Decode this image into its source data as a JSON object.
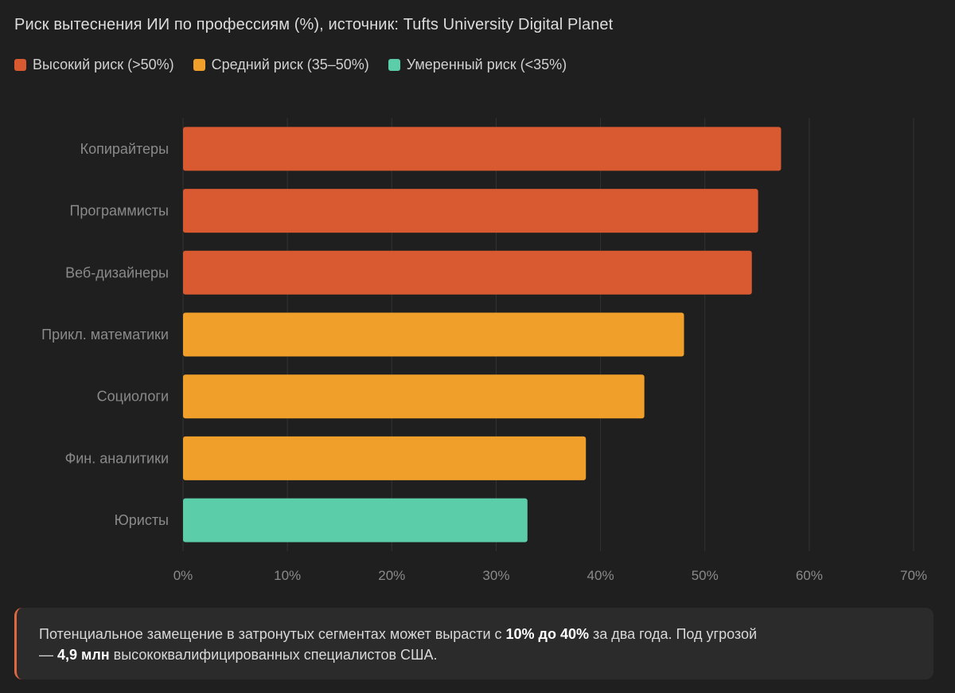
{
  "colors": {
    "background": "#1f1f1f",
    "high": "#d95a30",
    "medium": "#ef9f2a",
    "moderate": "#5ccda9",
    "grid": "#333333",
    "tick_text": "#8a8a8a",
    "note_accent": "#e2673f"
  },
  "title": "Риск вытеснения ИИ по профессиям (%), источник: Tufts University Digital Planet",
  "legend": [
    {
      "label": "Высокий риск (>50%)",
      "color": "#d95a30"
    },
    {
      "label": "Средний риск (35–50%)",
      "color": "#ef9f2a"
    },
    {
      "label": "Умеренный риск (<35%)",
      "color": "#5ccda9"
    }
  ],
  "chart_data": {
    "type": "bar",
    "orientation": "horizontal",
    "title": "Риск вытеснения ИИ по профессиям (%), источник: Tufts University Digital Planet",
    "categories": [
      "Копирайтеры",
      "Программисты",
      "Веб-дизайнеры",
      "Прикл. математики",
      "Социологи",
      "Фин. аналитики",
      "Юристы"
    ],
    "values": [
      57.3,
      55.1,
      54.5,
      48.0,
      44.2,
      38.6,
      33.0
    ],
    "risk_levels": [
      "high",
      "high",
      "high",
      "medium",
      "medium",
      "medium",
      "moderate"
    ],
    "xlim": [
      0,
      70
    ],
    "xticks": [
      0,
      10,
      20,
      30,
      40,
      50,
      60,
      70
    ],
    "xtick_labels": [
      "0%",
      "10%",
      "20%",
      "30%",
      "40%",
      "50%",
      "60%",
      "70%"
    ],
    "xlabel": "",
    "ylabel": "",
    "grid": "vertical",
    "legend_position": "top-left"
  },
  "note": {
    "text_1": "Потенциальное замещение в затронутых сегментах может вырасти с ",
    "highlight_1": "10% до 40%",
    "text_2": " за два года. Под угрозой",
    "text_3": "— ",
    "highlight_2": "4,9 млн",
    "text_4": " высококвалифицированных специалистов США."
  }
}
